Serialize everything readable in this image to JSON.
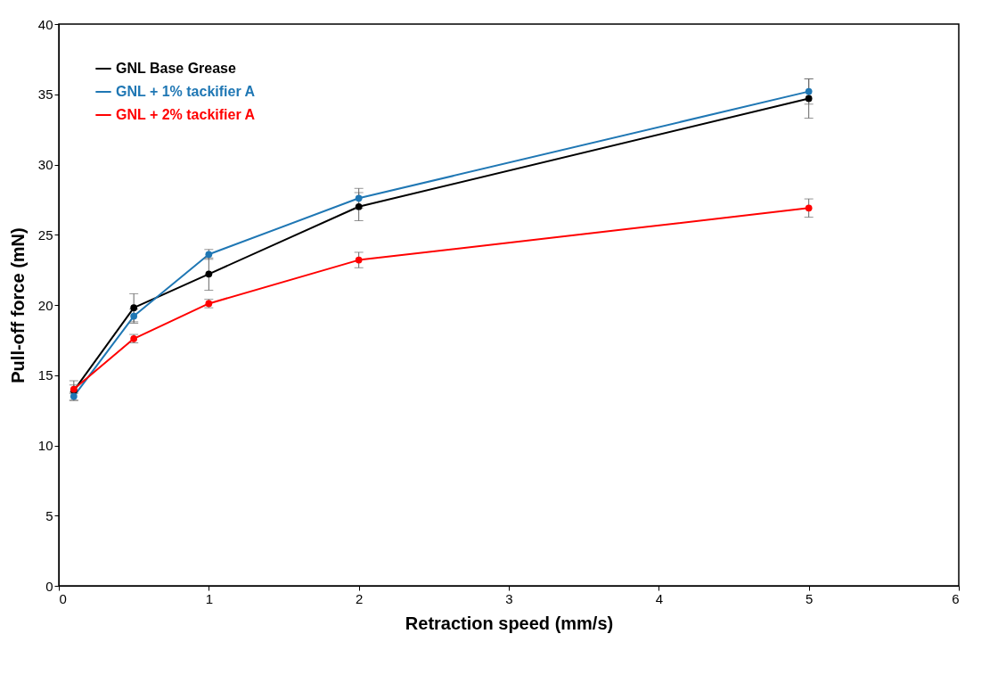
{
  "chart_data": {
    "type": "line",
    "xlabel": "Retraction speed (mm/s)",
    "ylabel": "Pull-off force (mN)",
    "x": [
      0.1,
      0.5,
      1,
      2,
      5
    ],
    "series": [
      {
        "name": "GNL Base Grease",
        "color": "#000000",
        "values": [
          13.9,
          19.8,
          22.2,
          27.0,
          34.7
        ],
        "errors": [
          0.7,
          1.0,
          1.15,
          1.0,
          1.4
        ]
      },
      {
        "name": "GNL + 1% tackifier A",
        "color": "#1f77b4",
        "values": [
          13.5,
          19.2,
          23.6,
          27.6,
          35.2
        ],
        "errors": [
          0.3,
          0.5,
          0.35,
          0.7,
          0.9
        ]
      },
      {
        "name": "GNL + 2% tackifier A",
        "color": "#ff0000",
        "values": [
          14.0,
          17.6,
          20.1,
          23.2,
          26.9
        ],
        "errors": [
          0.3,
          0.3,
          0.3,
          0.55,
          0.65
        ]
      }
    ],
    "xlim": [
      0,
      6
    ],
    "xticks": [
      0,
      1,
      2,
      3,
      4,
      5,
      6
    ],
    "ylim": [
      0,
      40
    ],
    "yticks": [
      0,
      5,
      10,
      15,
      20,
      25,
      30,
      35,
      40
    ],
    "grid": false,
    "legend": "top left",
    "marker": "circle",
    "line_style": "solid"
  }
}
